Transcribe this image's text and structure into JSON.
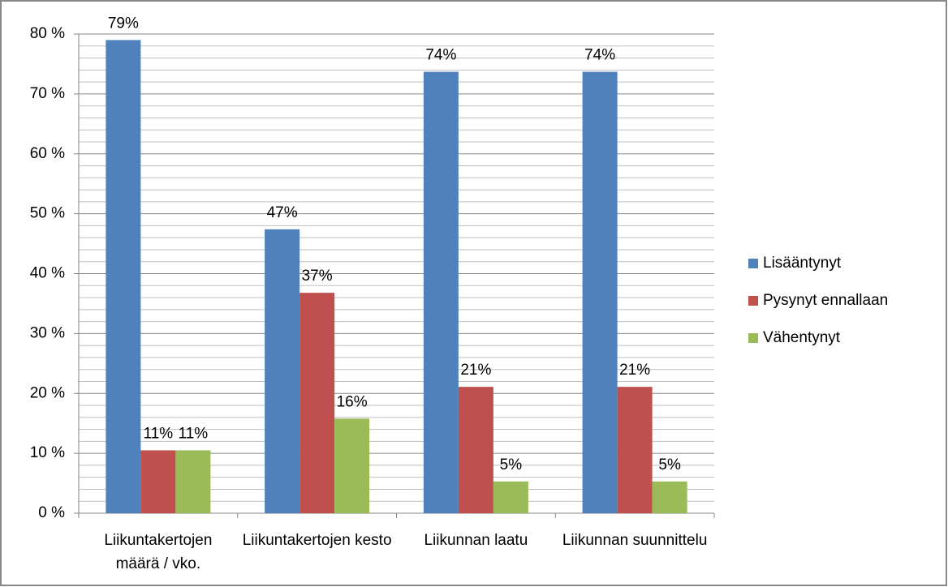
{
  "chart_data": {
    "type": "bar",
    "categories": [
      "Liikuntakertojen määrä / vko.",
      "Liikuntakertojen kesto",
      "Liikunnan laatu",
      "Liikunnan suunnittelu"
    ],
    "series": [
      {
        "name": "Lisääntynyt",
        "color": "#4f81bd",
        "values": [
          79,
          47.4,
          73.7,
          73.7
        ],
        "value_labels": [
          "79%",
          "47%",
          "74%",
          "74%"
        ]
      },
      {
        "name": "Pysynyt ennallaan",
        "color": "#c0504d",
        "values": [
          10.5,
          36.8,
          21.1,
          21.1
        ],
        "value_labels": [
          "11%",
          "37%",
          "21%",
          "21%"
        ]
      },
      {
        "name": "Vähentynyt",
        "color": "#9bbb59",
        "values": [
          10.5,
          15.8,
          5.3,
          5.3
        ],
        "value_labels": [
          "11%",
          "16%",
          "5%",
          "5%"
        ]
      }
    ],
    "ylim": [
      0,
      80
    ],
    "yticks": [
      {
        "value": 0,
        "label": "0 %"
      },
      {
        "value": 10,
        "label": "10 %"
      },
      {
        "value": 20,
        "label": "20 %"
      },
      {
        "value": 30,
        "label": "30 %"
      },
      {
        "value": 40,
        "label": "40 %"
      },
      {
        "value": 50,
        "label": "50 %"
      },
      {
        "value": 60,
        "label": "60 %"
      },
      {
        "value": 70,
        "label": "70 %"
      },
      {
        "value": 80,
        "label": "80 %"
      }
    ],
    "grid": true,
    "minor_grid": true,
    "legend": "right"
  }
}
